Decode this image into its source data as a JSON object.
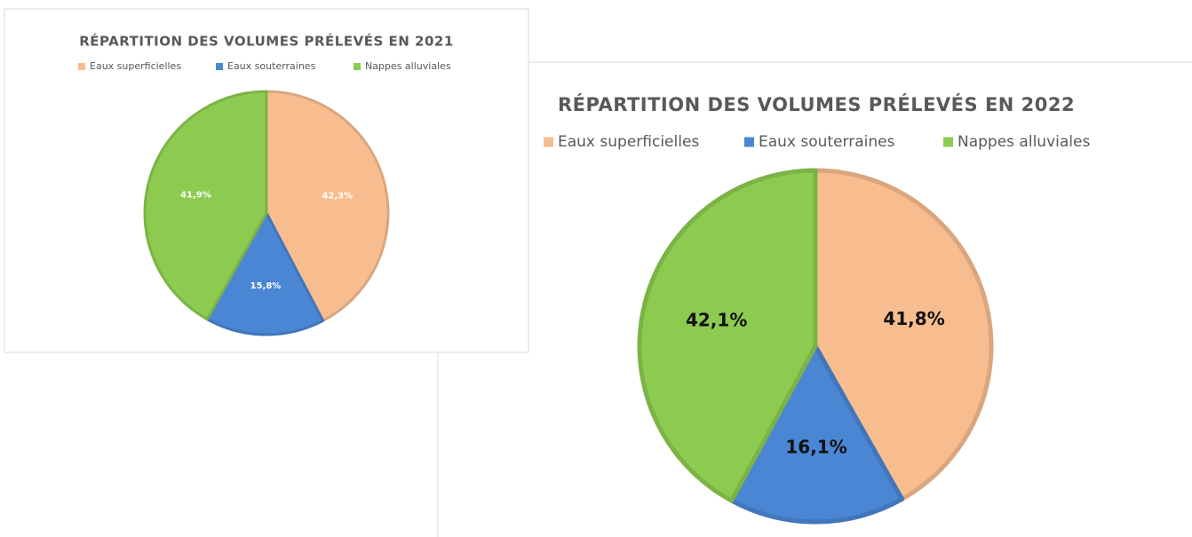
{
  "chart_data": [
    {
      "type": "pie",
      "title": "RÉPARTITION DES VOLUMES PRÉLEVÉS EN 2021",
      "categories": [
        "Eaux superficielles",
        "Eaux souterraines",
        "Nappes alluviales"
      ],
      "values": [
        42.3,
        15.8,
        41.9
      ],
      "value_labels": [
        "42,3%",
        "15,8%",
        "41,9%"
      ],
      "colors": [
        "#f8bd8f",
        "#4a86d4",
        "#8dcb50"
      ],
      "legend": "top"
    },
    {
      "type": "pie",
      "title": "RÉPARTITION DES VOLUMES PRÉLEVÉS EN 2022",
      "categories": [
        "Eaux superficielles",
        "Eaux souterraines",
        "Nappes alluviales"
      ],
      "values": [
        41.8,
        16.1,
        42.1
      ],
      "value_labels": [
        "41,8%",
        "16,1%",
        "42,1%"
      ],
      "colors": [
        "#f8bd8f",
        "#4a86d4",
        "#8dcb50"
      ],
      "legend": "top"
    }
  ]
}
